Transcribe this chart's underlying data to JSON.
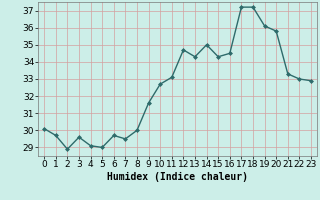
{
  "x": [
    0,
    1,
    2,
    3,
    4,
    5,
    6,
    7,
    8,
    9,
    10,
    11,
    12,
    13,
    14,
    15,
    16,
    17,
    18,
    19,
    20,
    21,
    22,
    23
  ],
  "y": [
    30.1,
    29.7,
    28.9,
    29.6,
    29.1,
    29.0,
    29.7,
    29.5,
    30.0,
    31.6,
    32.7,
    33.1,
    34.7,
    34.3,
    35.0,
    34.3,
    34.5,
    37.2,
    37.2,
    36.1,
    35.8,
    33.3,
    33.0,
    32.9
  ],
  "line_color": "#2e6b6b",
  "marker": "D",
  "markersize": 2.0,
  "linewidth": 1.0,
  "xlabel": "Humidex (Indice chaleur)",
  "xlim": [
    -0.5,
    23.5
  ],
  "ylim": [
    28.5,
    37.5
  ],
  "yticks": [
    29,
    30,
    31,
    32,
    33,
    34,
    35,
    36,
    37
  ],
  "xticks": [
    0,
    1,
    2,
    3,
    4,
    5,
    6,
    7,
    8,
    9,
    10,
    11,
    12,
    13,
    14,
    15,
    16,
    17,
    18,
    19,
    20,
    21,
    22,
    23
  ],
  "bg_color": "#cceee8",
  "grid_color": "#d4a0a0",
  "xlabel_fontsize": 7.0,
  "tick_fontsize": 6.5
}
